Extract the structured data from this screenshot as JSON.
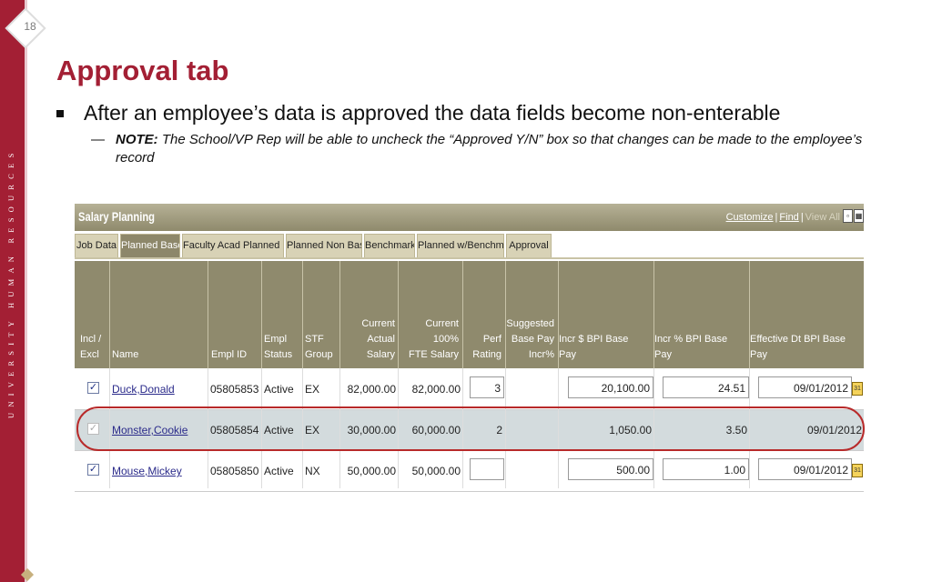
{
  "slide": {
    "page_number": "18",
    "title": "Approval tab",
    "bullet": "After an employee’s data is approved the data fields become non-enterable",
    "note_dash": "—",
    "note_label": "NOTE:",
    "note_text": " The School/VP Rep will be able to uncheck the “Approved Y/N” box so that changes can be made to the employee’s record",
    "side_text": "UNIVERSITY HUMAN RESOURCES"
  },
  "app": {
    "title": "Salary Planning",
    "links": {
      "customize": "Customize",
      "find": "Find",
      "view_all": "View All",
      "sep": "|"
    },
    "tabs": [
      "Job Data",
      "Planned Base",
      "Faculty Acad Planned Base",
      "Planned Non Base",
      "Benchmark",
      "Planned w/Benchmark",
      "Approval"
    ],
    "active_tab": "Planned Base",
    "columns": {
      "incl": [
        "Incl /",
        "Excl"
      ],
      "name": [
        "Name"
      ],
      "empl_id": [
        "Empl ID"
      ],
      "empl_status": [
        "Empl",
        "Status"
      ],
      "stf_group": [
        "STF",
        "Group"
      ],
      "current_salary": [
        "Current",
        "Actual Salary"
      ],
      "current_fte": [
        "Current 100%",
        "FTE Salary"
      ],
      "perf_rating": [
        "Perf",
        "Rating"
      ],
      "suggested": [
        "Suggested",
        "Base Pay",
        "Incr%"
      ],
      "incr_dollar": [
        "Incr $ BPI Base Pay"
      ],
      "incr_pct": [
        "Incr % BPI Base Pay"
      ],
      "eff_dt": [
        "Effective Dt BPI Base Pay"
      ]
    },
    "rows": [
      {
        "checked": "✓",
        "name": "Duck,Donald",
        "empl_id": "05805853",
        "status": "Active",
        "group": "EX",
        "current_salary": "82,000.00",
        "fte_salary": "82,000.00",
        "perf": "3",
        "incr_dollar": "20,100.00",
        "incr_pct": "24.51",
        "eff_dt": "09/01/2012"
      },
      {
        "checked": "✓",
        "name": "Monster,Cookie",
        "empl_id": "05805854",
        "status": "Active",
        "group": "EX",
        "current_salary": "30,000.00",
        "fte_salary": "60,000.00",
        "perf": "2",
        "incr_dollar": "1,050.00",
        "incr_pct": "3.50",
        "eff_dt": "09/01/2012"
      },
      {
        "checked": "✓",
        "name": "Mouse,Mickey",
        "empl_id": "05805850",
        "status": "Active",
        "group": "NX",
        "current_salary": "50,000.00",
        "fte_salary": "50,000.00",
        "perf": "",
        "incr_dollar": "500.00",
        "incr_pct": "1.00",
        "eff_dt": "09/01/2012"
      }
    ],
    "calendar_glyph": "31",
    "colors": {
      "header_bg": "#8f8a6d",
      "approved_row_bg": "#d3dbdd",
      "highlight_ring": "#b82a2a",
      "brand": "#a31f34"
    }
  }
}
